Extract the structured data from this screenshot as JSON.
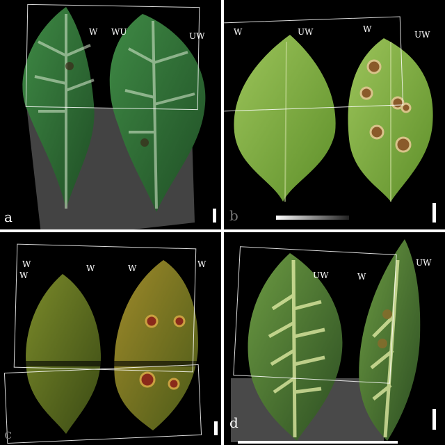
{
  "panels": {
    "a": {
      "letter": "a",
      "labels": [
        "W",
        "WU",
        "UW"
      ]
    },
    "b": {
      "letter": "b",
      "labels": [
        "W",
        "UW",
        "W",
        "UW"
      ]
    },
    "c": {
      "letter": "c",
      "labels": [
        "W",
        "W",
        "W",
        "W",
        "W"
      ]
    },
    "d": {
      "letter": "d",
      "labels": [
        "UW",
        "UW",
        "W"
      ]
    }
  },
  "colors": {
    "background": "#000000",
    "separator": "#ffffff",
    "leaf_a": "#2f6a33",
    "leaf_b": "#7fae3c",
    "leaf_c": "#5a6a1c",
    "leaf_d": "#4f7f34",
    "lesion": "#8a5a2a"
  }
}
